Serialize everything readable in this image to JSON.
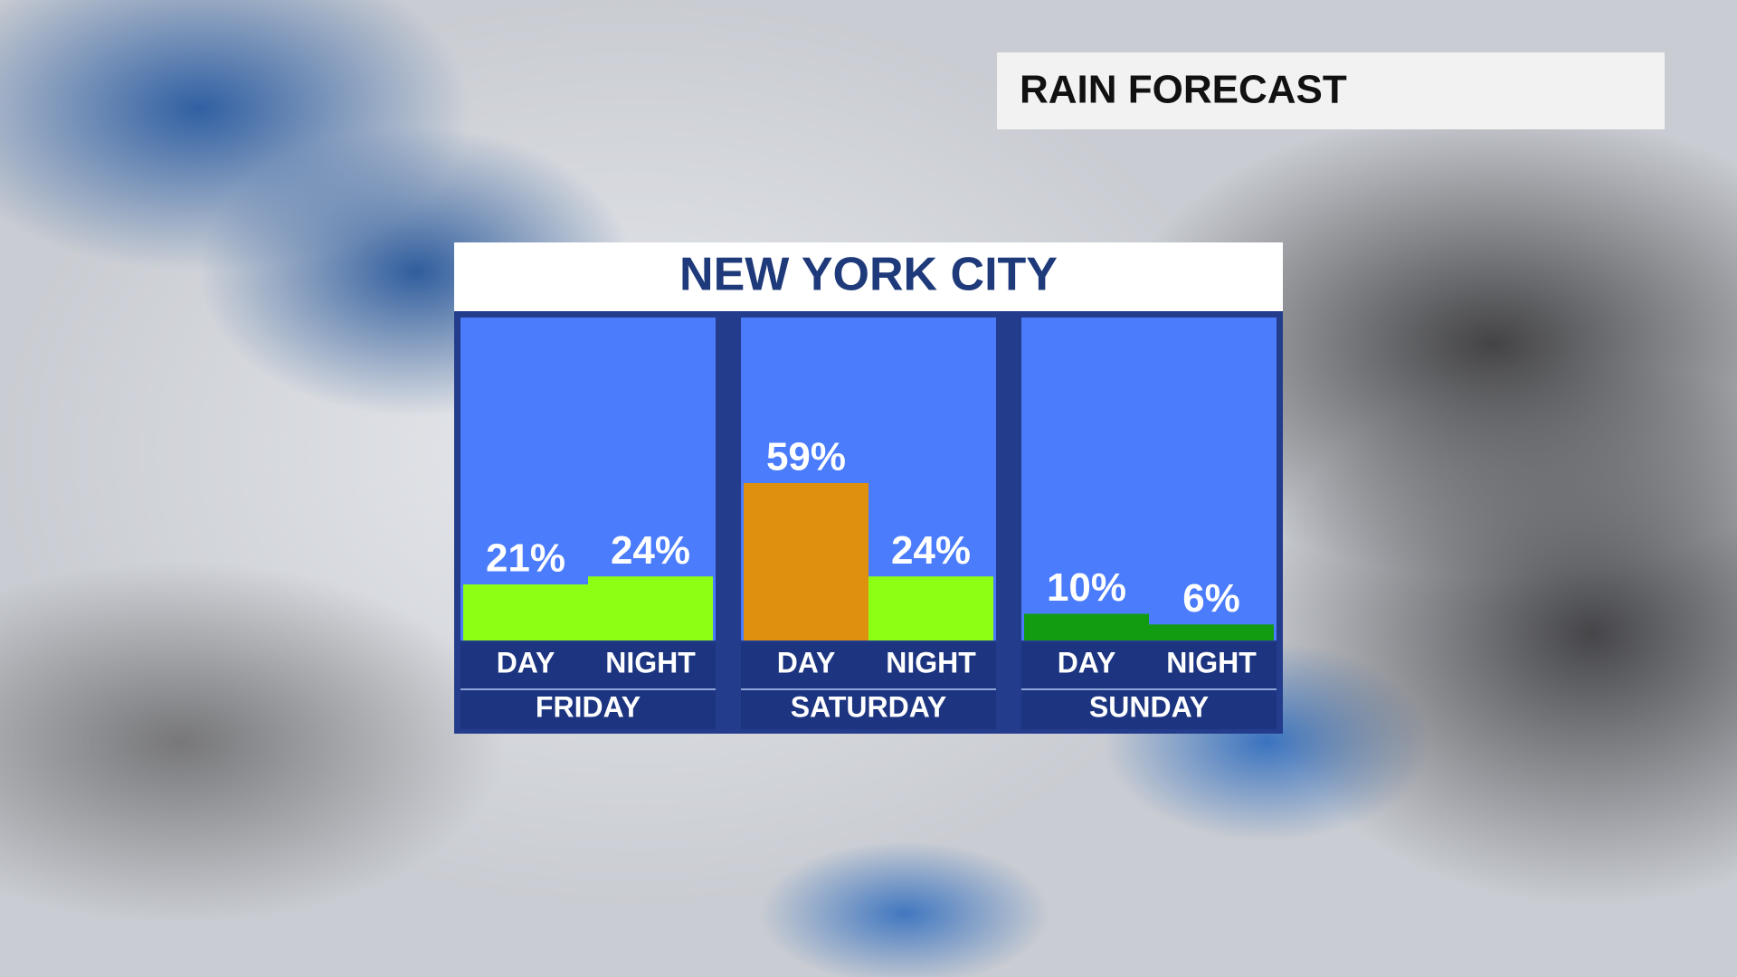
{
  "header": {
    "title": "RAIN FORECAST"
  },
  "chart_data": {
    "type": "bar",
    "title": "NEW YORK CITY",
    "categories": [
      "FRIDAY",
      "SATURDAY",
      "SUNDAY"
    ],
    "series": [
      {
        "name": "DAY",
        "values": [
          21,
          59,
          10
        ],
        "value_labels": [
          "21%",
          "59%",
          "10%"
        ],
        "colors": [
          "#8cff14",
          "#e0900f",
          "#129c12"
        ]
      },
      {
        "name": "NIGHT",
        "values": [
          24,
          24,
          6
        ],
        "value_labels": [
          "24%",
          "24%",
          "6%"
        ],
        "colors": [
          "#8cff14",
          "#8cff14",
          "#129c12"
        ]
      }
    ]
  }
}
